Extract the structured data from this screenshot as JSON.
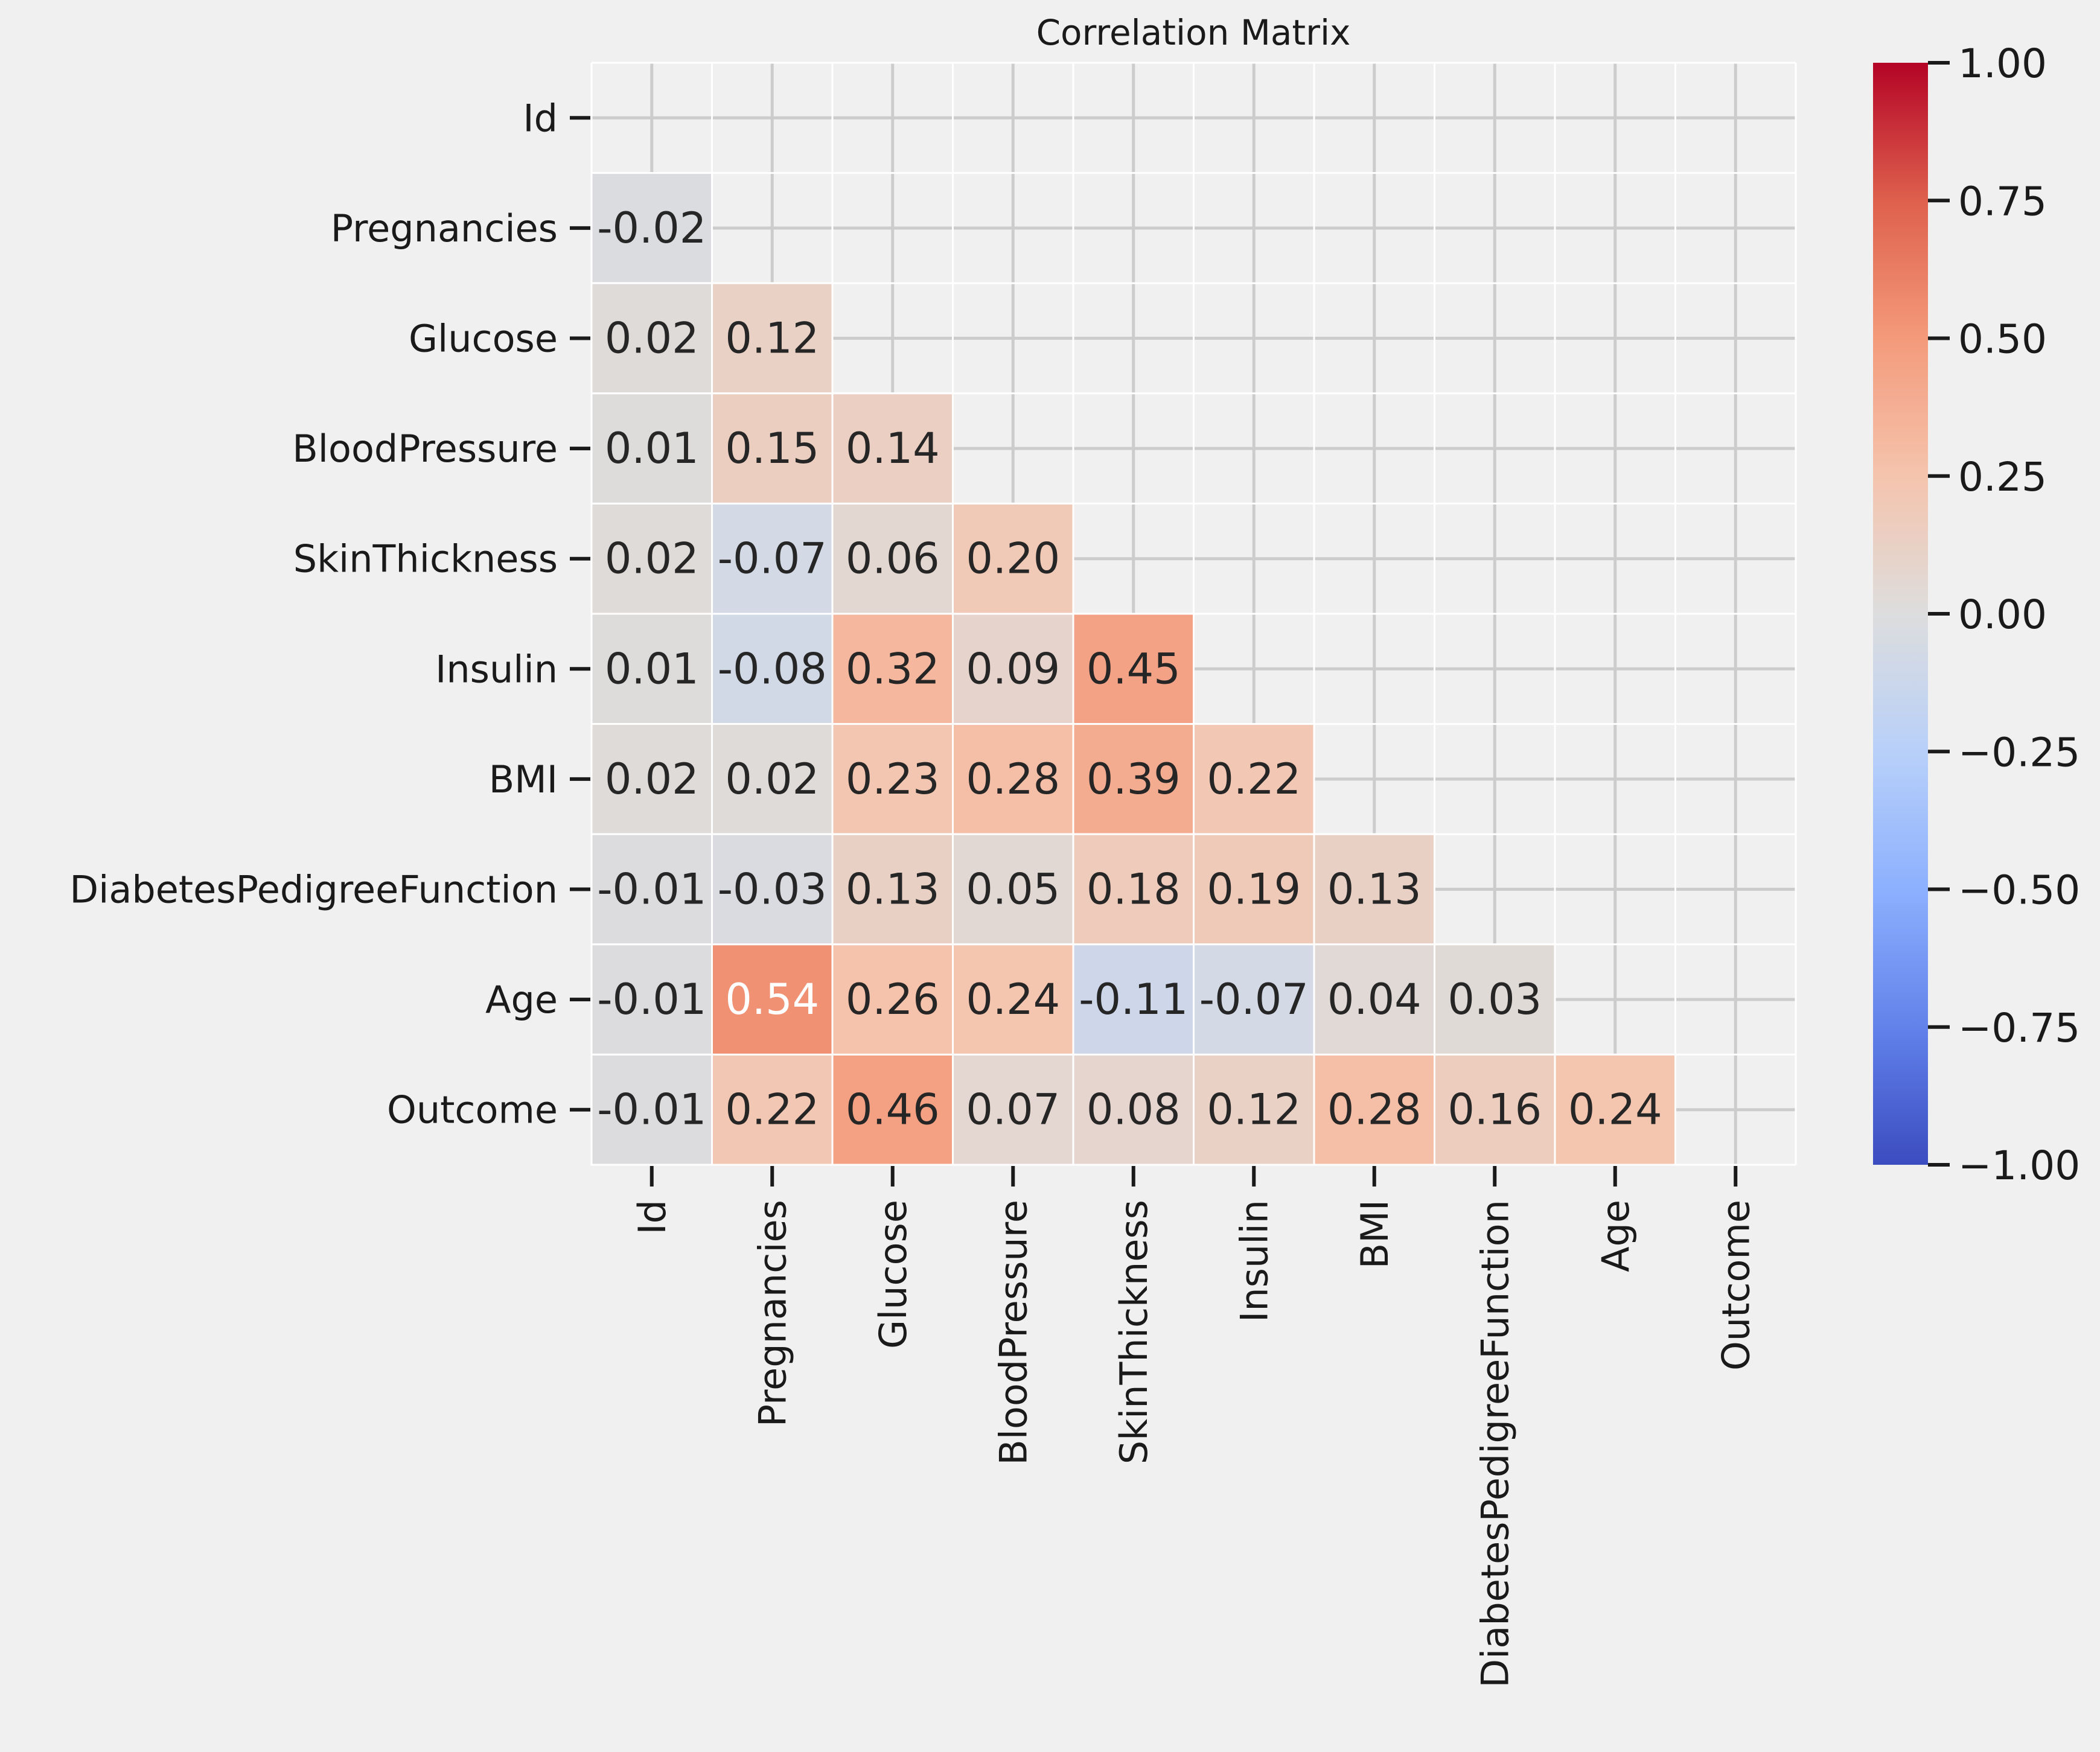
{
  "chart_data": {
    "type": "heatmap",
    "title": "Correlation Matrix",
    "labels": [
      "Id",
      "Pregnancies",
      "Glucose",
      "BloodPressure",
      "SkinThickness",
      "Insulin",
      "BMI",
      "DiabetesPedigreeFunction",
      "Age",
      "Outcome"
    ],
    "matrix": [
      [
        null,
        null,
        null,
        null,
        null,
        null,
        null,
        null,
        null,
        null
      ],
      [
        -0.02,
        null,
        null,
        null,
        null,
        null,
        null,
        null,
        null,
        null
      ],
      [
        0.02,
        0.12,
        null,
        null,
        null,
        null,
        null,
        null,
        null,
        null
      ],
      [
        0.01,
        0.15,
        0.14,
        null,
        null,
        null,
        null,
        null,
        null,
        null
      ],
      [
        0.02,
        -0.07,
        0.06,
        0.2,
        null,
        null,
        null,
        null,
        null,
        null
      ],
      [
        0.01,
        -0.08,
        0.32,
        0.09,
        0.45,
        null,
        null,
        null,
        null,
        null
      ],
      [
        0.02,
        0.02,
        0.23,
        0.28,
        0.39,
        0.22,
        null,
        null,
        null,
        null
      ],
      [
        -0.01,
        -0.03,
        0.13,
        0.05,
        0.18,
        0.19,
        0.13,
        null,
        null,
        null
      ],
      [
        -0.01,
        0.54,
        0.26,
        0.24,
        -0.11,
        -0.07,
        0.04,
        0.03,
        null,
        null
      ],
      [
        -0.01,
        0.22,
        0.46,
        0.07,
        0.08,
        0.12,
        0.28,
        0.16,
        0.24,
        null
      ]
    ],
    "colormap": "coolwarm",
    "vmin": -1.0,
    "vmax": 1.0,
    "colorbar_ticks": [
      1.0,
      0.75,
      0.5,
      0.25,
      0.0,
      -0.25,
      -0.5,
      -0.75,
      -1.0
    ],
    "grid": true,
    "mask": "upper-triangle"
  },
  "colors": {
    "background": "#f0f0f0",
    "grid": "#cccccc",
    "text_dark": "#262626",
    "text_light": "#ffffff"
  }
}
